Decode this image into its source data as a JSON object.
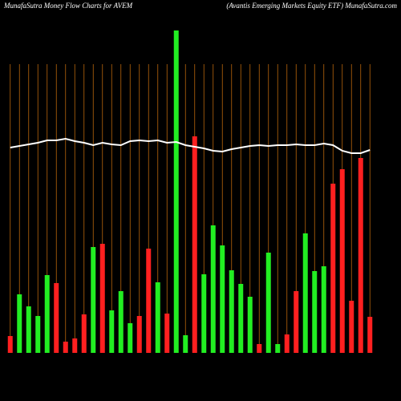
{
  "chart_data": {
    "type": "bar",
    "title": "MunafaSutra  Money Flow  Charts for AVEM",
    "subtitle": "(Avantis Emerging Markets Equity ETF) MunafaSutra.com",
    "categories": [
      null,
      null,
      null,
      null,
      null,
      null,
      null,
      null,
      null,
      null,
      null,
      null,
      null,
      null,
      null,
      null,
      null,
      null,
      null,
      null,
      null,
      null,
      null,
      null,
      null,
      null,
      null,
      null,
      null,
      null,
      null,
      null,
      null,
      null,
      null,
      null,
      null,
      null,
      null,
      null
    ],
    "ylim": [
      0,
      402
    ],
    "grid": true,
    "grid_color": "#b8660b",
    "series": [
      {
        "type": "bar",
        "values": [
          21,
          73,
          58,
          46,
          97,
          87,
          14,
          18,
          48,
          132,
          136,
          53,
          77,
          37,
          46,
          130,
          88,
          49,
          402,
          22,
          270,
          98,
          159,
          134,
          103,
          86,
          70,
          11,
          125,
          11,
          23,
          77,
          149,
          102,
          108,
          211,
          229,
          65,
          243,
          45
        ],
        "colors": [
          "#ff2020",
          "#22ee22",
          "#22ee22",
          "#22ee22",
          "#22ee22",
          "#ff2020",
          "#ff2020",
          "#ff2020",
          "#ff2020",
          "#22ee22",
          "#ff2020",
          "#22ee22",
          "#22ee22",
          "#22ee22",
          "#ff2020",
          "#ff2020",
          "#22ee22",
          "#ff2020",
          "#22ee22",
          "#22ee22",
          "#ff2020",
          "#22ee22",
          "#22ee22",
          "#22ee22",
          "#22ee22",
          "#22ee22",
          "#22ee22",
          "#ff2020",
          "#22ee22",
          "#22ee22",
          "#ff2020",
          "#ff2020",
          "#22ee22",
          "#22ee22",
          "#22ee22",
          "#ff2020",
          "#ff2020",
          "#ff2020",
          "#ff2020",
          "#ff2020"
        ]
      },
      {
        "type": "line",
        "color": "#ffffff",
        "values": [
          256,
          258,
          260,
          262,
          265,
          265,
          267,
          264,
          262,
          259,
          262,
          260,
          259,
          264,
          265,
          264,
          265,
          262,
          263,
          259,
          257,
          255,
          252,
          251,
          254,
          256,
          258,
          259,
          258,
          259,
          259,
          260,
          259,
          259,
          261,
          259,
          252,
          249,
          249,
          253
        ]
      }
    ]
  }
}
